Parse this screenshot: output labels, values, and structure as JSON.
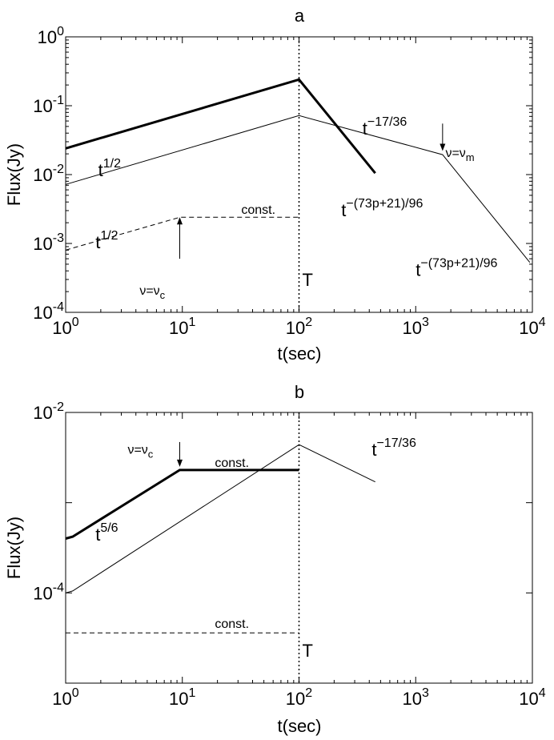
{
  "chart_data": [
    {
      "type": "line",
      "title": "a",
      "xlabel": "t(sec)",
      "ylabel": "Flux(Jy)",
      "xscale": "log",
      "yscale": "log",
      "xlim": [
        1,
        10000
      ],
      "ylim": [
        0.0001,
        1
      ],
      "xticks": [
        {
          "base": "10",
          "exp": "0"
        },
        {
          "base": "10",
          "exp": "1"
        },
        {
          "base": "10",
          "exp": "2"
        },
        {
          "base": "10",
          "exp": "3"
        },
        {
          "base": "10",
          "exp": "4"
        }
      ],
      "yticks": [
        {
          "base": "10",
          "exp": "-4"
        },
        {
          "base": "10",
          "exp": "-3"
        },
        {
          "base": "10",
          "exp": "-2"
        },
        {
          "base": "10",
          "exp": "-1"
        },
        {
          "base": "10",
          "exp": "0"
        }
      ],
      "grid": false,
      "vline": {
        "x": 100,
        "style": "dotted",
        "label": "T"
      },
      "series": [
        {
          "style": "thick",
          "x": [
            1,
            100,
            450
          ],
          "y": [
            0.024,
            0.24,
            0.0105
          ]
        },
        {
          "style": "thin",
          "x": [
            1,
            100,
            1700,
            9500
          ],
          "y": [
            0.0072,
            0.072,
            0.0195,
            0.00053
          ]
        },
        {
          "style": "dashed",
          "x": [
            1,
            9.5,
            100
          ],
          "y": [
            0.0008,
            0.0024,
            0.0024
          ]
        }
      ],
      "annotations": [
        {
          "base": "t",
          "sup": "1/2",
          "x": 1.9,
          "y": 0.0095
        },
        {
          "base": "t",
          "sup": "1/2",
          "x": 1.8,
          "y": 0.00085
        },
        {
          "text": "const.",
          "x": 32,
          "y": 0.0027
        },
        {
          "base": "t",
          "sup": "−17/36",
          "x": 350,
          "y": 0.038
        },
        {
          "base": "t",
          "sup": "−(73p+21)/96",
          "x": 230,
          "y": 0.0025
        },
        {
          "base": "t",
          "sup": "−(73p+21)/96",
          "x": 1000,
          "y": 0.00034
        },
        {
          "nu_eq": "ν=ν",
          "sub": "m",
          "x": 1800,
          "y": 0.018
        },
        {
          "nu_eq": "ν=ν",
          "sub": "c",
          "x": 4.3,
          "y": 0.00018
        }
      ],
      "arrows": [
        {
          "x": 9.5,
          "from_y": 0.0006,
          "to_y": 0.0024
        },
        {
          "x": 1700,
          "from_y": 0.055,
          "to_y": 0.022
        }
      ]
    },
    {
      "type": "line",
      "title": "b",
      "xlabel": "t(sec)",
      "ylabel": "Flux(Jy)",
      "xscale": "log",
      "yscale": "log",
      "xlim": [
        1,
        10000
      ],
      "ylim": [
        1e-05,
        0.01
      ],
      "xticks": [
        {
          "base": "10",
          "exp": "0"
        },
        {
          "base": "10",
          "exp": "1"
        },
        {
          "base": "10",
          "exp": "2"
        },
        {
          "base": "10",
          "exp": "3"
        },
        {
          "base": "10",
          "exp": "4"
        }
      ],
      "yticks": [
        {
          "base": "10",
          "exp": "-4",
          "value": 0.0001
        },
        {
          "base": "10",
          "exp": "-2",
          "value": 0.01
        }
      ],
      "yminor": [
        0.001
      ],
      "grid": false,
      "vline": {
        "x": 100,
        "style": "dotted",
        "label": "T"
      },
      "series": [
        {
          "style": "thick",
          "x": [
            1,
            1.15,
            9.5,
            100
          ],
          "y": [
            0.0004,
            0.00042,
            0.0023,
            0.0023
          ]
        },
        {
          "style": "thin",
          "x": [
            1,
            1.15,
            100,
            450
          ],
          "y": [
            0.0001,
            0.000105,
            0.0044,
            0.0017
          ]
        },
        {
          "style": "dashed",
          "x": [
            1,
            100
          ],
          "y": [
            3.6e-05,
            3.6e-05
          ]
        }
      ],
      "annotations": [
        {
          "base": "t",
          "sup": "5/6",
          "x": 1.8,
          "y": 0.00038
        },
        {
          "text": "const.",
          "x": 19,
          "y": 0.0025
        },
        {
          "text": "const.",
          "x": 19,
          "y": 4.1e-05
        },
        {
          "base": "t",
          "sup": "−17/36",
          "x": 420,
          "y": 0.0033
        },
        {
          "nu_eq": "ν=ν",
          "sub": "c",
          "x": 3.4,
          "y": 0.0035
        }
      ],
      "arrows": [
        {
          "x": 9.5,
          "from_y": 0.0047,
          "to_y": 0.0025
        }
      ]
    }
  ]
}
